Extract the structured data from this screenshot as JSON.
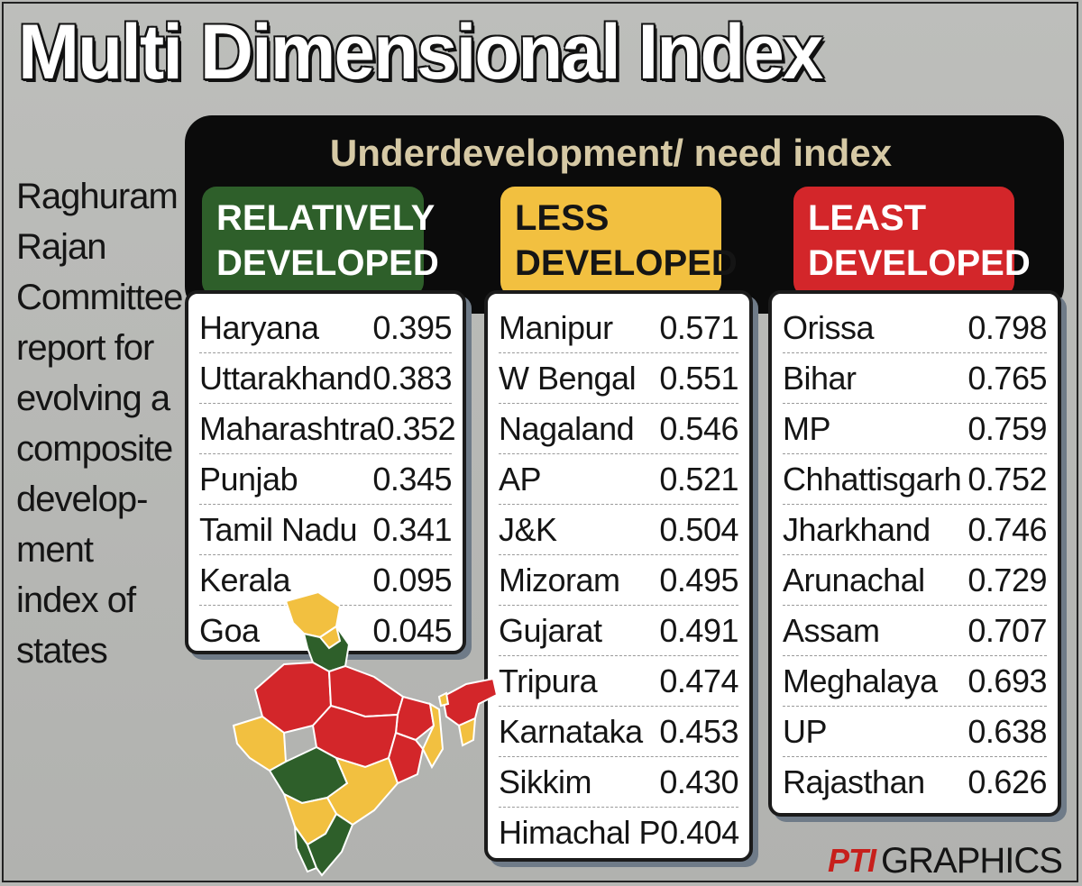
{
  "title": "Multi Dimensional Index",
  "subtitle": "Underdevelopment/ need  index",
  "side_note": [
    "Raghuram",
    "Rajan",
    "Committee",
    "report for",
    "evolving a",
    "composite",
    "develop-",
    "ment",
    "index of",
    "states"
  ],
  "colors": {
    "relatively_developed": "#2e5f2a",
    "less_developed": "#f2c040",
    "least_developed": "#d3262a",
    "panel": "#0b0b0b",
    "subtitle": "#d6c9a5"
  },
  "categories": [
    {
      "key": "relatively_developed",
      "label_lines": [
        "RELATIVELY",
        "DEVELOPED"
      ],
      "rows": [
        {
          "state": "Haryana",
          "value": "0.395"
        },
        {
          "state": "Uttarakhand",
          "value": "0.383"
        },
        {
          "state": "Maharashtra",
          "value": "0.352"
        },
        {
          "state": "Punjab",
          "value": "0.345"
        },
        {
          "state": "Tamil Nadu",
          "value": "0.341"
        },
        {
          "state": "Kerala",
          "value": "0.095"
        },
        {
          "state": "Goa",
          "value": "0.045"
        }
      ]
    },
    {
      "key": "less_developed",
      "label_lines": [
        "LESS",
        "DEVELOPED"
      ],
      "rows": [
        {
          "state": "Manipur",
          "value": "0.571"
        },
        {
          "state": "W Bengal",
          "value": "0.551"
        },
        {
          "state": "Nagaland",
          "value": "0.546"
        },
        {
          "state": "AP",
          "value": "0.521"
        },
        {
          "state": "J&K",
          "value": "0.504"
        },
        {
          "state": "Mizoram",
          "value": "0.495"
        },
        {
          "state": "Gujarat",
          "value": "0.491"
        },
        {
          "state": "Tripura",
          "value": "0.474"
        },
        {
          "state": "Karnataka",
          "value": "0.453"
        },
        {
          "state": "Sikkim",
          "value": "0.430"
        },
        {
          "state": "Himachal P",
          "value": "0.404"
        }
      ]
    },
    {
      "key": "least_developed",
      "label_lines": [
        "LEAST",
        "DEVELOPED"
      ],
      "rows": [
        {
          "state": "Orissa",
          "value": "0.798"
        },
        {
          "state": "Bihar",
          "value": "0.765"
        },
        {
          "state": "MP",
          "value": "0.759"
        },
        {
          "state": "Chhattisgarh",
          "value": "0.752"
        },
        {
          "state": "Jharkhand",
          "value": "0.746"
        },
        {
          "state": "Arunachal",
          "value": "0.729"
        },
        {
          "state": "Assam",
          "value": "0.707"
        },
        {
          "state": "Meghalaya",
          "value": "0.693"
        },
        {
          "state": "UP",
          "value": "0.638"
        },
        {
          "state": "Rajasthan",
          "value": "0.626"
        }
      ]
    }
  ],
  "map": {
    "icon": "india-map-icon"
  },
  "credit": {
    "mark": "PTI",
    "text": "GRAPHICS"
  }
}
